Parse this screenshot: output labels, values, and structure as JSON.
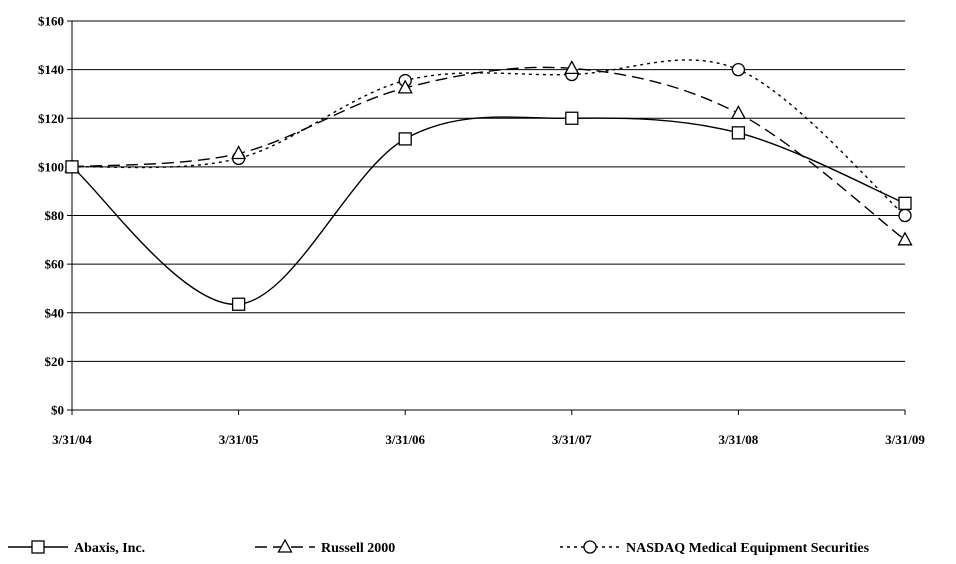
{
  "chart_data": {
    "type": "line",
    "title": "",
    "xlabel": "",
    "ylabel": "",
    "categories": [
      "3/31/04",
      "3/31/05",
      "3/31/06",
      "3/31/07",
      "3/31/08",
      "3/31/09"
    ],
    "ylim": [
      0,
      160
    ],
    "y_ticks": [
      "$0",
      "$20",
      "$40",
      "$60",
      "$80",
      "$100",
      "$120",
      "$140",
      "$160"
    ],
    "grid": true,
    "legend_position": "bottom",
    "series": [
      {
        "name": "Abaxis, Inc.",
        "values": [
          100,
          43.5,
          111.5,
          120,
          114,
          85
        ],
        "marker": "square",
        "dash": "solid",
        "color": "#000000"
      },
      {
        "name": "Russell 2000",
        "values": [
          100,
          105.5,
          132.5,
          140.5,
          122,
          70
        ],
        "marker": "triangle",
        "dash": "dashed",
        "color": "#000000"
      },
      {
        "name": "NASDAQ Medical Equipment Securities",
        "values": [
          100,
          103.5,
          135.5,
          138,
          140,
          80
        ],
        "marker": "circle",
        "dash": "dotted",
        "color": "#000000"
      }
    ]
  }
}
